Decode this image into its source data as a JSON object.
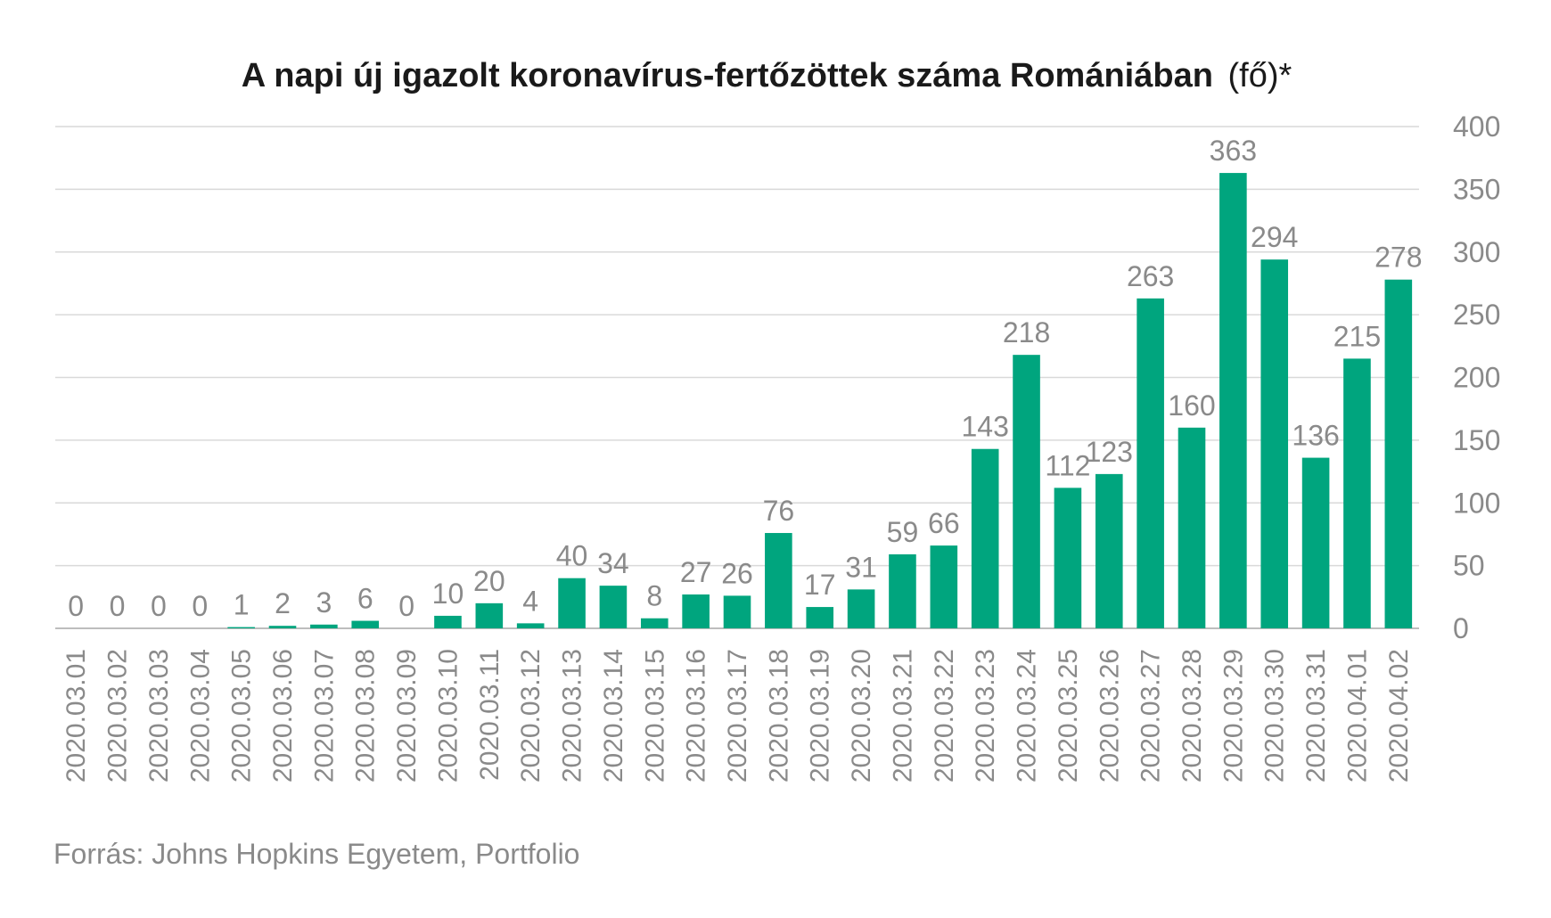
{
  "chart_data": {
    "type": "bar",
    "title": "A napi új igazolt koronavírus-fertőzöttek száma Romániában",
    "title_unit": "(fő)*",
    "source": "Forrás: Johns Hopkins Egyetem, Portfolio",
    "xlabel": "",
    "ylabel": "",
    "ylim": [
      0,
      400
    ],
    "yticks": [
      0,
      50,
      100,
      150,
      200,
      250,
      300,
      350,
      400
    ],
    "y_axis_side": "right",
    "grid": true,
    "bar_color": "#00a57e",
    "categories": [
      "2020.03.01",
      "2020.03.02",
      "2020.03.03",
      "2020.03.04",
      "2020.03.05",
      "2020.03.06",
      "2020.03.07",
      "2020.03.08",
      "2020.03.09",
      "2020.03.10",
      "2020.03.11",
      "2020.03.12",
      "2020.03.13",
      "2020.03.14",
      "2020.03.15",
      "2020.03.16",
      "2020.03.17",
      "2020.03.18",
      "2020.03.19",
      "2020.03.20",
      "2020.03.21",
      "2020.03.22",
      "2020.03.23",
      "2020.03.24",
      "2020.03.25",
      "2020.03.26",
      "2020.03.27",
      "2020.03.28",
      "2020.03.29",
      "2020.03.30",
      "2020.03.31",
      "2020.04.01",
      "2020.04.02"
    ],
    "values": [
      0,
      0,
      0,
      0,
      1,
      2,
      3,
      6,
      0,
      10,
      20,
      4,
      40,
      34,
      8,
      27,
      26,
      76,
      17,
      31,
      59,
      66,
      143,
      218,
      112,
      123,
      263,
      160,
      363,
      294,
      136,
      215,
      278
    ]
  }
}
